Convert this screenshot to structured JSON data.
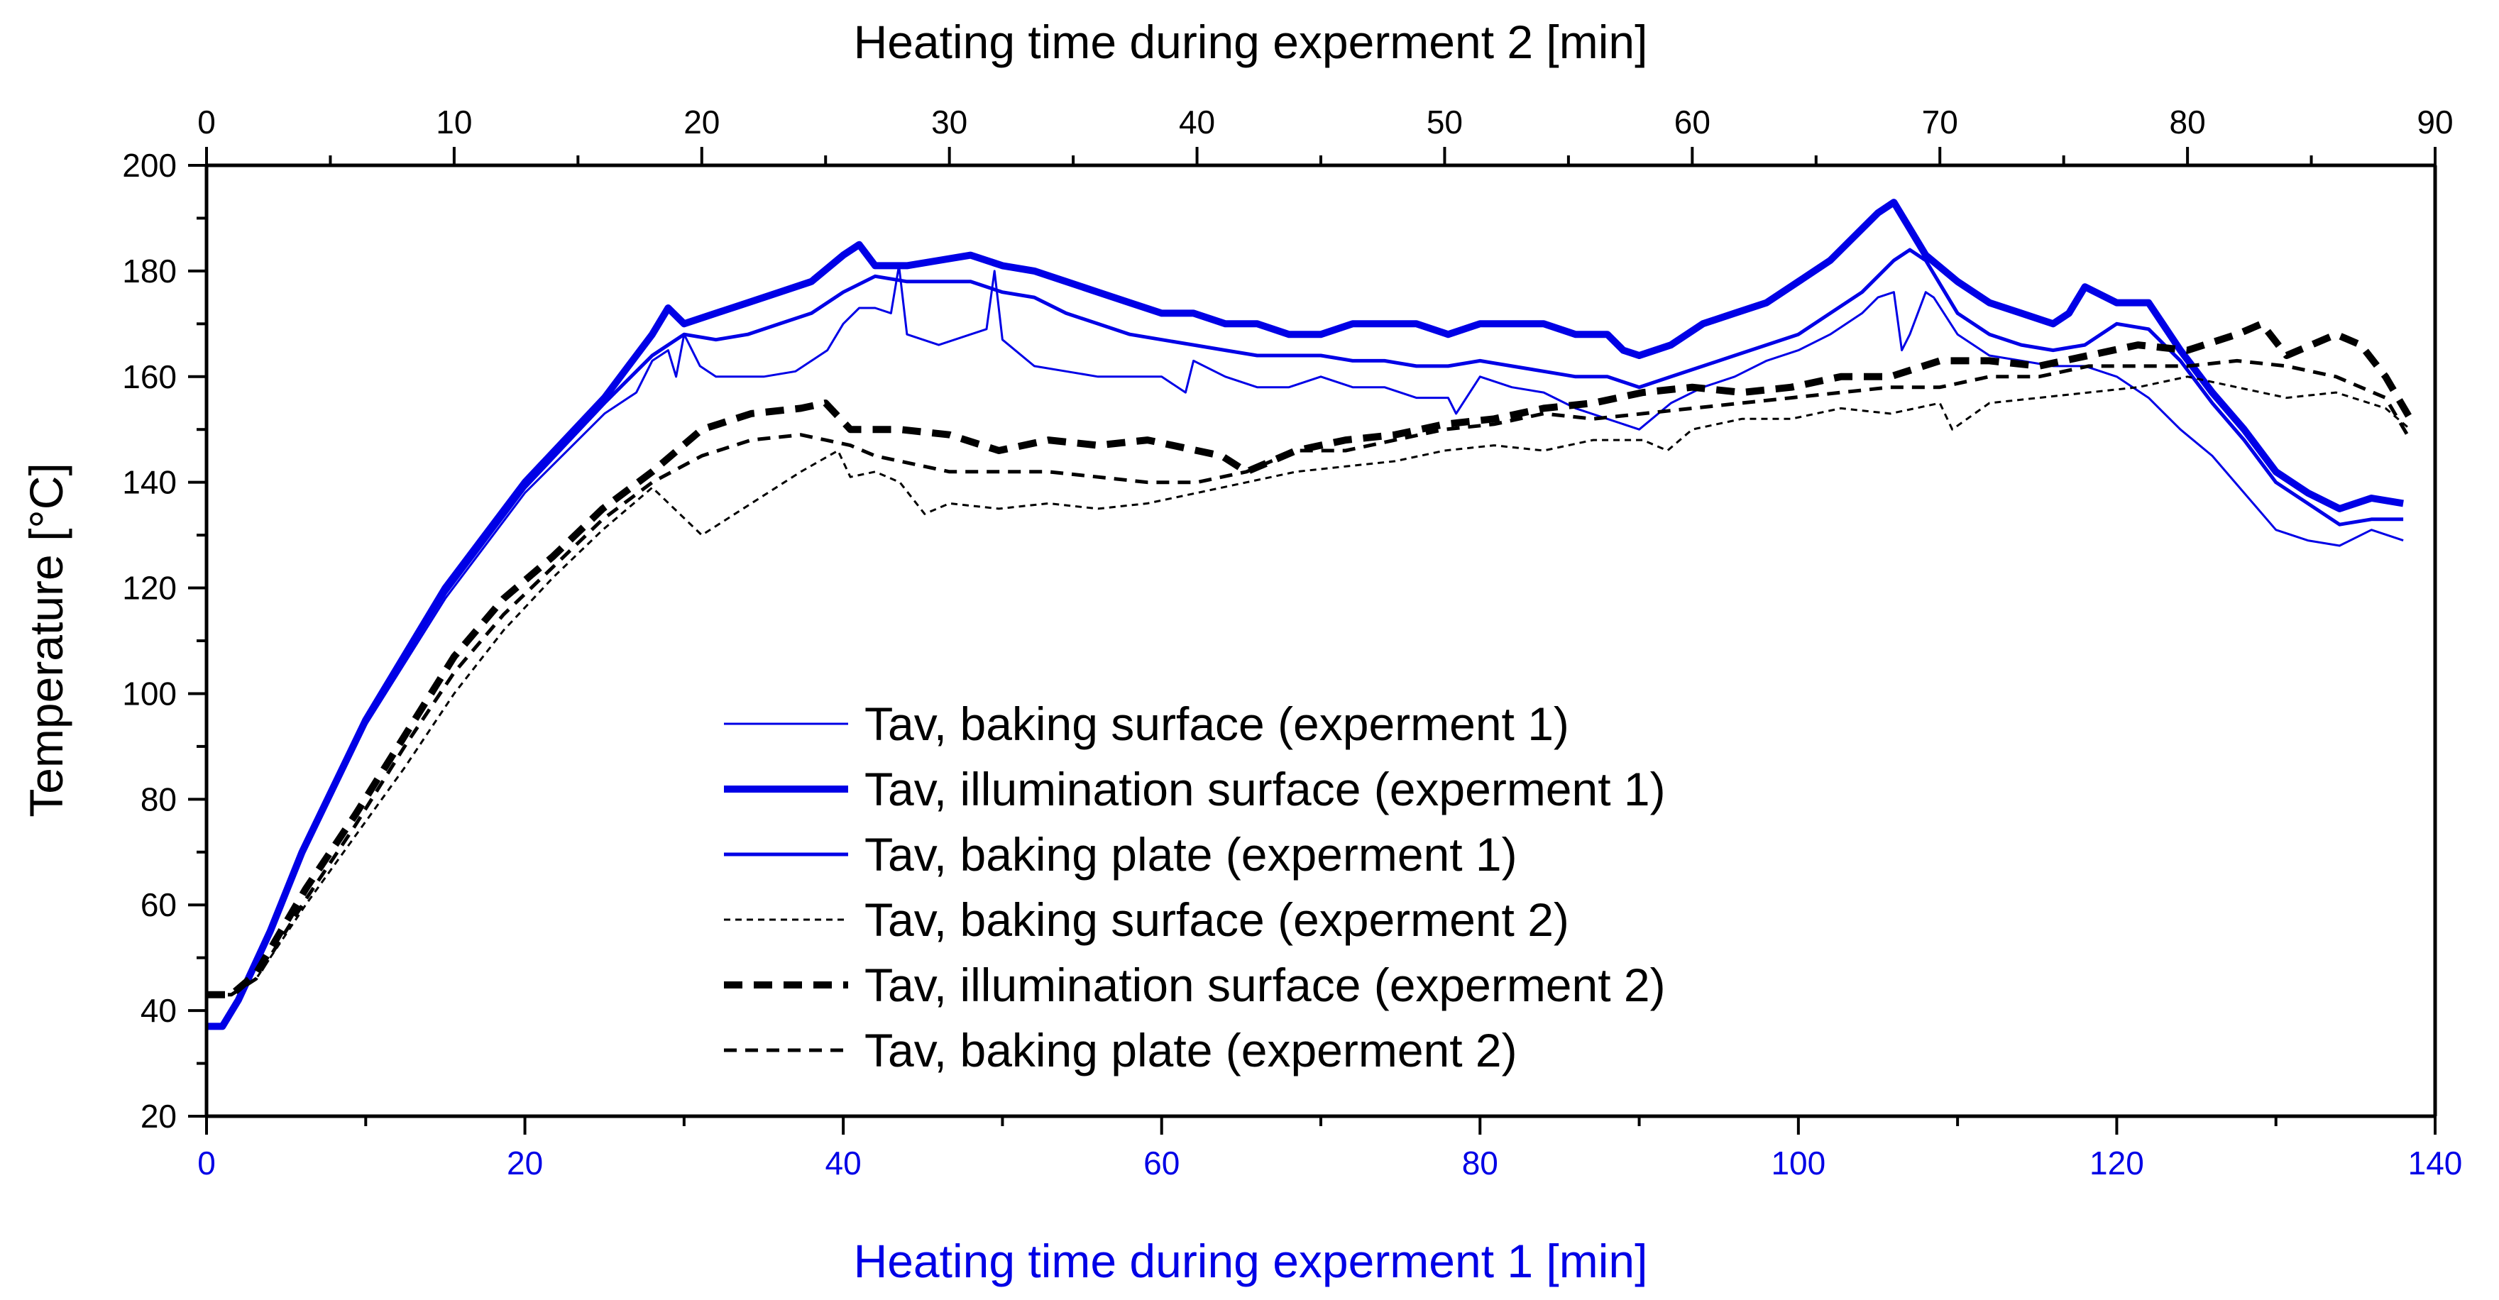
{
  "chart_data": {
    "type": "line",
    "title": "",
    "ylabel": "Temperature [°C]",
    "ylim": [
      20,
      200
    ],
    "yticks": [
      20,
      40,
      60,
      80,
      100,
      120,
      140,
      160,
      180,
      200
    ],
    "bottom_axis": {
      "label": "Heating time during experment 1 [min]",
      "xlim": [
        0,
        140
      ],
      "ticks": [
        0,
        20,
        40,
        60,
        80,
        100,
        120,
        140
      ],
      "color": "#0000e6"
    },
    "top_axis": {
      "label": "Heating time during experment 2 [min]",
      "xlim": [
        0,
        90
      ],
      "ticks": [
        0,
        10,
        20,
        30,
        40,
        50,
        60,
        70,
        80,
        90
      ],
      "color": "#000000"
    },
    "grid": false,
    "legend_position": "lower-center",
    "series": [
      {
        "name": "Tav, baking surface (experment 1)",
        "axis": "bottom",
        "color": "#0000e6",
        "style": "solid",
        "weight": "thin",
        "x": [
          0,
          1,
          2,
          4,
          6,
          10,
          15,
          20,
          25,
          27,
          28,
          29,
          29.5,
          30,
          31,
          32,
          33,
          35,
          37,
          39,
          40,
          41,
          42,
          43,
          43.5,
          44,
          46,
          48,
          49,
          49.5,
          50,
          52,
          54,
          56,
          58,
          60,
          61.5,
          62,
          64,
          66,
          68,
          70,
          72,
          74,
          76,
          78,
          78.5,
          80,
          82,
          84,
          86,
          88,
          90,
          92,
          94,
          96,
          98,
          100,
          102,
          104,
          105,
          106,
          106.5,
          107,
          108,
          108.5,
          110,
          112,
          114,
          116,
          118,
          120,
          122,
          124,
          126,
          128,
          130,
          132,
          134,
          136,
          138
        ],
        "y": [
          37,
          37,
          42,
          55,
          70,
          94,
          118,
          138,
          153,
          157,
          163,
          165,
          160,
          168,
          162,
          160,
          160,
          160,
          161,
          165,
          170,
          173,
          173,
          172,
          181,
          168,
          166,
          168,
          169,
          180,
          167,
          162,
          161,
          160,
          160,
          160,
          157,
          163,
          160,
          158,
          158,
          160,
          158,
          158,
          156,
          156,
          153,
          160,
          158,
          157,
          154,
          152,
          150,
          155,
          158,
          160,
          163,
          165,
          168,
          172,
          175,
          176,
          165,
          168,
          176,
          175,
          168,
          164,
          163,
          162,
          162,
          160,
          156,
          150,
          145,
          138,
          131,
          129,
          128,
          131,
          129
        ]
      },
      {
        "name": "Tav, illumination surface (experment 1)",
        "axis": "bottom",
        "color": "#0000e6",
        "style": "solid",
        "weight": "thick",
        "x": [
          0,
          1,
          2,
          4,
          6,
          10,
          15,
          20,
          25,
          28,
          29,
          30,
          32,
          34,
          36,
          38,
          40,
          41,
          42,
          44,
          46,
          48,
          50,
          52,
          54,
          56,
          58,
          60,
          62,
          64,
          66,
          68,
          70,
          72,
          74,
          76,
          78,
          80,
          82,
          84,
          86,
          88,
          89,
          90,
          92,
          94,
          96,
          98,
          100,
          102,
          104,
          105,
          106,
          107,
          108,
          110,
          112,
          114,
          116,
          117,
          118,
          120,
          122,
          124,
          126,
          128,
          130,
          132,
          134,
          136,
          138
        ],
        "y": [
          37,
          37,
          42,
          55,
          70,
          95,
          120,
          140,
          156,
          168,
          173,
          170,
          172,
          174,
          176,
          178,
          183,
          185,
          181,
          181,
          182,
          183,
          181,
          180,
          178,
          176,
          174,
          172,
          172,
          170,
          170,
          168,
          168,
          170,
          170,
          170,
          168,
          170,
          170,
          170,
          168,
          168,
          165,
          164,
          166,
          170,
          172,
          174,
          178,
          182,
          188,
          191,
          193,
          188,
          183,
          178,
          174,
          172,
          170,
          172,
          177,
          174,
          174,
          165,
          157,
          150,
          142,
          138,
          135,
          137,
          136
        ]
      },
      {
        "name": "Tav, baking plate (experment 1)",
        "axis": "bottom",
        "color": "#0000e6",
        "style": "solid",
        "weight": "medium",
        "x": [
          0,
          1,
          2,
          4,
          6,
          10,
          15,
          20,
          25,
          28,
          30,
          32,
          34,
          36,
          38,
          40,
          42,
          44,
          46,
          48,
          50,
          52,
          54,
          56,
          58,
          60,
          62,
          64,
          66,
          68,
          70,
          72,
          74,
          76,
          78,
          80,
          82,
          84,
          86,
          88,
          90,
          92,
          94,
          96,
          98,
          100,
          102,
          104,
          106,
          107,
          108,
          110,
          112,
          114,
          116,
          118,
          120,
          122,
          124,
          126,
          128,
          130,
          132,
          134,
          136,
          138
        ],
        "y": [
          37,
          37,
          42,
          55,
          70,
          95,
          119,
          139,
          155,
          164,
          168,
          167,
          168,
          170,
          172,
          176,
          179,
          178,
          178,
          178,
          176,
          175,
          172,
          170,
          168,
          167,
          166,
          165,
          164,
          164,
          164,
          163,
          163,
          162,
          162,
          163,
          162,
          161,
          160,
          160,
          158,
          160,
          162,
          164,
          166,
          168,
          172,
          176,
          182,
          184,
          182,
          172,
          168,
          166,
          165,
          166,
          170,
          169,
          163,
          155,
          148,
          140,
          136,
          132,
          133,
          133
        ]
      },
      {
        "name": "Tav, baking surface (experment 2)",
        "axis": "top",
        "color": "#000000",
        "style": "dotted",
        "weight": "thin",
        "x": [
          0,
          1,
          2,
          4,
          6,
          8,
          10,
          12,
          14,
          16,
          18,
          20,
          22,
          24,
          25.5,
          26,
          27,
          28,
          29,
          30,
          32,
          34,
          36,
          38,
          40,
          42,
          44,
          46,
          48,
          50,
          52,
          54,
          56,
          58,
          59,
          60,
          62,
          64,
          66,
          68,
          70,
          70.5,
          72,
          74,
          76,
          78,
          80,
          82,
          84,
          86,
          88,
          89
        ],
        "y": [
          43,
          43,
          46,
          60,
          73,
          86,
          100,
          112,
          122,
          131,
          139,
          130,
          136,
          142,
          146,
          141,
          142,
          140,
          134,
          136,
          135,
          136,
          135,
          136,
          138,
          140,
          142,
          143,
          144,
          146,
          147,
          146,
          148,
          148,
          146,
          150,
          152,
          152,
          154,
          153,
          155,
          150,
          155,
          156,
          157,
          158,
          160,
          158,
          156,
          157,
          154,
          150
        ]
      },
      {
        "name": "Tav, illumination surface (experment 2)",
        "axis": "top",
        "color": "#000000",
        "style": "dashed",
        "weight": "thick",
        "x": [
          0,
          1,
          2,
          4,
          6,
          8,
          10,
          12,
          14,
          16,
          18,
          20,
          22,
          24,
          25,
          26,
          27,
          28,
          30,
          32,
          34,
          36,
          38,
          40,
          41,
          42,
          44,
          46,
          48,
          50,
          52,
          54,
          56,
          58,
          60,
          62,
          64,
          66,
          68,
          70,
          72,
          74,
          76,
          78,
          80,
          82,
          83,
          84,
          86,
          87,
          88,
          89
        ],
        "y": [
          43,
          43,
          47,
          63,
          77,
          92,
          107,
          118,
          126,
          135,
          142,
          150,
          153,
          154,
          155,
          150,
          150,
          150,
          149,
          146,
          148,
          147,
          148,
          146,
          145,
          142,
          146,
          148,
          149,
          151,
          152,
          154,
          155,
          157,
          158,
          157,
          158,
          160,
          160,
          163,
          163,
          162,
          164,
          166,
          165,
          168,
          170,
          164,
          168,
          166,
          160,
          152
        ]
      },
      {
        "name": "Tav, baking plate (experment 2)",
        "axis": "top",
        "color": "#000000",
        "style": "dashed",
        "weight": "medium",
        "x": [
          0,
          1,
          2,
          4,
          6,
          8,
          10,
          12,
          14,
          16,
          18,
          20,
          22,
          24,
          25,
          26,
          27,
          28,
          30,
          32,
          34,
          36,
          38,
          40,
          42,
          44,
          46,
          48,
          50,
          52,
          54,
          56,
          58,
          60,
          62,
          64,
          66,
          68,
          70,
          72,
          74,
          76,
          78,
          80,
          82,
          84,
          86,
          88,
          89
        ],
        "y": [
          43,
          43,
          46,
          61,
          75,
          90,
          104,
          115,
          124,
          133,
          140,
          145,
          148,
          149,
          148,
          147,
          145,
          144,
          142,
          142,
          142,
          141,
          140,
          140,
          142,
          146,
          146,
          148,
          150,
          151,
          153,
          152,
          153,
          154,
          155,
          156,
          157,
          158,
          158,
          160,
          160,
          162,
          162,
          162,
          163,
          162,
          160,
          156,
          148
        ]
      }
    ]
  }
}
